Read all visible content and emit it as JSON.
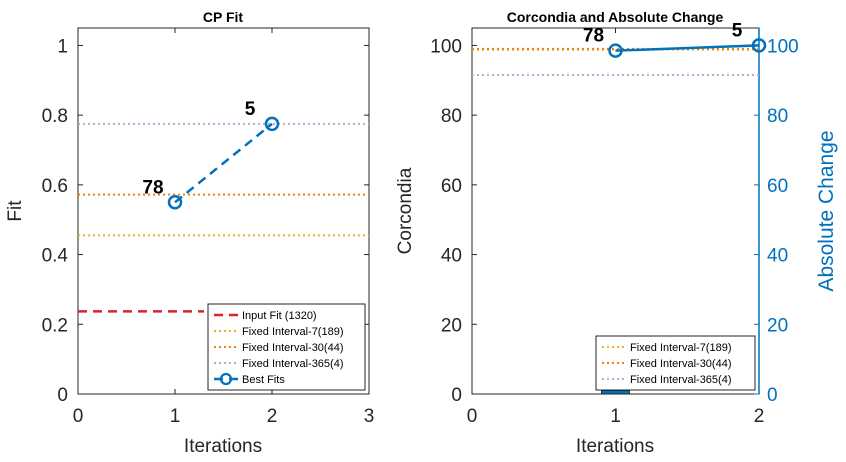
{
  "chart_data": [
    {
      "type": "line",
      "title": "CP Fit",
      "xlabel": "Iterations",
      "ylabel": "Fit",
      "xlim": [
        0,
        3
      ],
      "ylim": [
        0,
        1.05
      ],
      "xticks": [
        "0",
        "1",
        "2",
        "3"
      ],
      "yticks": [
        "0",
        "0.2",
        "0.4",
        "0.6",
        "0.8",
        "1"
      ],
      "series": [
        {
          "name": "Input Fit (1320)",
          "style": "dashed",
          "color": "#d62728",
          "x": [
            0,
            1.3
          ],
          "y": [
            0.237,
            0.237
          ]
        },
        {
          "name": "Fixed Interval-7(189)",
          "style": "dotted",
          "color": "#edb120",
          "x": [
            0,
            3
          ],
          "y": [
            0.455,
            0.455
          ]
        },
        {
          "name": "Fixed Interval-30(44)",
          "style": "dotted",
          "color": "#f07f10",
          "x": [
            0,
            3
          ],
          "y": [
            0.572,
            0.572
          ]
        },
        {
          "name": "Fixed Interval-365(4)",
          "style": "dotted",
          "color": "#c8a0d8",
          "x": [
            0,
            3
          ],
          "y": [
            0.775,
            0.775
          ]
        },
        {
          "name": "Best Fits",
          "style": "dashed-markers",
          "color": "#0072bd",
          "x": [
            1,
            2
          ],
          "y": [
            0.55,
            0.775
          ]
        }
      ],
      "annotations": [
        {
          "text": "78",
          "x": 1,
          "y": 0.55
        },
        {
          "text": "5",
          "x": 2,
          "y": 0.775
        }
      ],
      "legend": "bottom-right"
    },
    {
      "type": "line",
      "title": "Corcondia and Absolute Change",
      "xlabel": "Iterations",
      "ylabel": "Corcondia",
      "ylabel_right": "Absolute Change",
      "xlim": [
        0,
        2
      ],
      "ylim": [
        0,
        105
      ],
      "ylim_right": [
        0,
        105
      ],
      "xticks": [
        "0",
        "1",
        "2"
      ],
      "yticks": [
        "0",
        "20",
        "40",
        "60",
        "80",
        "100"
      ],
      "yticks_right": [
        "0",
        "20",
        "40",
        "60",
        "80",
        "100"
      ],
      "series": [
        {
          "name": "Fixed Interval-7(189)",
          "style": "dotted",
          "color": "#edb120",
          "x": [
            0,
            2
          ],
          "y": [
            98.8,
            98.8
          ]
        },
        {
          "name": "Fixed Interval-30(44)",
          "style": "dotted",
          "color": "#f07f10",
          "x": [
            0,
            2
          ],
          "y": [
            99.0,
            99.0
          ]
        },
        {
          "name": "Fixed Interval-365(4)",
          "style": "dotted",
          "color": "#c8a0d8",
          "x": [
            0,
            2
          ],
          "y": [
            91.5,
            91.5
          ]
        },
        {
          "name": "Corcondia",
          "style": "solid-markers",
          "color": "#0072bd",
          "x": [
            1,
            2
          ],
          "y": [
            98.5,
            100
          ]
        },
        {
          "name": "Absolute Change",
          "style": "bar",
          "color": "#0072bd",
          "x": [
            1
          ],
          "y": [
            1
          ]
        }
      ],
      "annotations": [
        {
          "text": "78",
          "x": 1,
          "y": 98.5
        },
        {
          "text": "5",
          "x": 2,
          "y": 100
        }
      ],
      "legend": "bottom-right"
    }
  ]
}
